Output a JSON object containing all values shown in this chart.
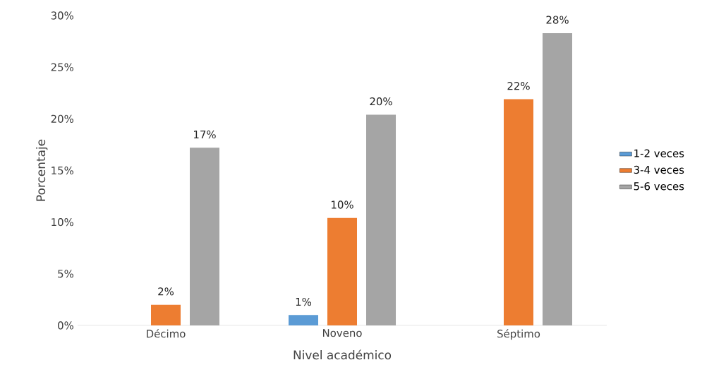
{
  "chart_data": {
    "type": "bar",
    "xlabel": "Nivel académico",
    "ylabel": "Porcentaje",
    "categories": [
      "Décimo",
      "Noveno",
      "Séptimo"
    ],
    "series": [
      {
        "name": "1-2 veces",
        "color": "#5b9bd5",
        "values": [
          null,
          1,
          null
        ],
        "value_labels": [
          null,
          "1%",
          null
        ]
      },
      {
        "name": "3-4 veces",
        "color": "#ed7d31",
        "values": [
          2,
          10.4,
          21.9
        ],
        "value_labels": [
          "2%",
          "10%",
          "22%"
        ]
      },
      {
        "name": "5-6 veces",
        "color": "#a5a5a5",
        "values": [
          17.2,
          20.4,
          28.3
        ],
        "value_labels": [
          "17%",
          "20%",
          "28%"
        ]
      }
    ],
    "ylim": [
      0,
      30
    ],
    "yticks": [
      {
        "value": 0,
        "label": "0%"
      },
      {
        "value": 5,
        "label": "5%"
      },
      {
        "value": 10,
        "label": "10%"
      },
      {
        "value": 15,
        "label": "15%"
      },
      {
        "value": 20,
        "label": "20%"
      },
      {
        "value": 25,
        "label": "25%"
      },
      {
        "value": 30,
        "label": "30%"
      }
    ],
    "grid": false,
    "legend": "right"
  }
}
